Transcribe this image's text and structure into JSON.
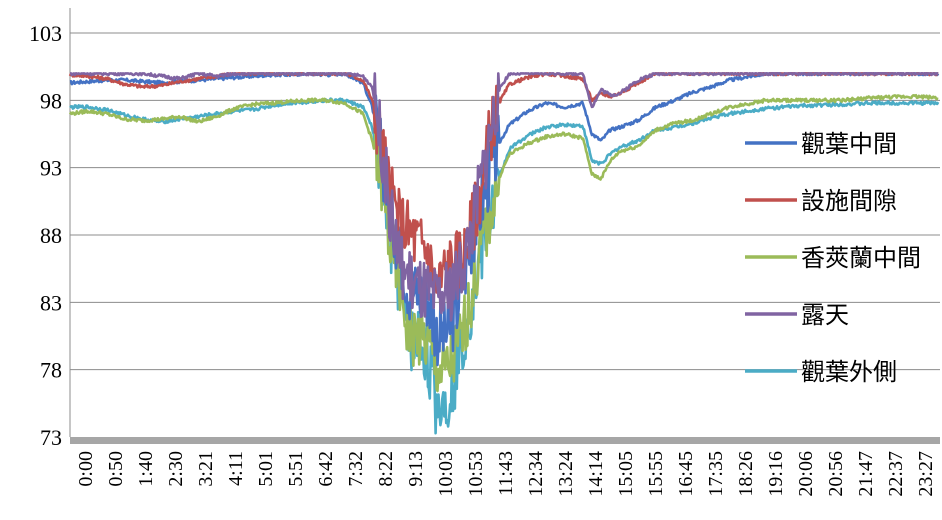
{
  "chart_data": {
    "type": "line",
    "title": "",
    "xlabel": "",
    "ylabel": "",
    "ylim": [
      73,
      103
    ],
    "yticks": [
      73,
      78,
      83,
      88,
      93,
      98,
      103
    ],
    "grid": "horizontal",
    "legend_position": "right",
    "x_tick_labels": [
      "0:00",
      "0:50",
      "1:40",
      "2:30",
      "3:21",
      "4:11",
      "5:01",
      "5:51",
      "6:42",
      "7:32",
      "8:22",
      "9:13",
      "10:03",
      "10:53",
      "11:43",
      "12:34",
      "13:24",
      "14:14",
      "15:05",
      "15:55",
      "16:45",
      "17:35",
      "18:26",
      "19:16",
      "20:06",
      "20:56",
      "21:47",
      "22:37",
      "23:27"
    ],
    "x_hours": [
      0,
      0.5,
      1,
      1.5,
      2,
      2.5,
      3,
      3.5,
      4,
      4.5,
      5,
      5.5,
      6,
      6.5,
      7,
      7.5,
      8,
      8.25,
      8.5,
      8.75,
      9,
      9.25,
      9.5,
      9.75,
      10,
      10.25,
      10.5,
      10.75,
      11,
      11.25,
      11.5,
      11.75,
      12,
      12.5,
      13,
      13.5,
      14,
      14.25,
      14.5,
      14.75,
      15,
      15.5,
      16,
      16.5,
      17,
      17.5,
      18,
      19,
      20,
      21,
      22,
      23,
      23.7
    ],
    "series": [
      {
        "name": "觀葉中間",
        "color": "#4472C4",
        "values": [
          99.3,
          99.4,
          99.5,
          99.5,
          99.4,
          99.3,
          99.4,
          99.5,
          99.6,
          99.7,
          99.8,
          99.9,
          99.9,
          100.0,
          99.9,
          100.0,
          99.3,
          97.5,
          94,
          89.5,
          87,
          84,
          83.8,
          83.5,
          80.8,
          80.5,
          82,
          85,
          88,
          90.5,
          93,
          95,
          96.2,
          97.2,
          97.8,
          97.5,
          97.8,
          95.5,
          95,
          95.8,
          96,
          96.5,
          97.5,
          98,
          98.6,
          99,
          99.5,
          100,
          100,
          100,
          100,
          100,
          100
        ]
      },
      {
        "name": "設施間隙",
        "color": "#C0504D",
        "values": [
          99.9,
          99.8,
          99.6,
          99.2,
          99.0,
          99.1,
          99.4,
          99.6,
          99.8,
          100,
          100,
          100,
          100,
          100,
          100,
          100,
          99.5,
          98,
          95,
          91,
          89,
          88.3,
          87.5,
          87,
          84,
          85.5,
          86,
          86.5,
          89,
          92,
          96,
          98,
          99.2,
          99.7,
          100,
          99.8,
          99.6,
          98,
          98.5,
          98.3,
          98.5,
          99.3,
          100,
          100,
          100,
          100,
          100,
          100,
          100,
          100,
          100,
          100,
          100
        ]
      },
      {
        "name": "香莢蘭中間",
        "color": "#9BBB59",
        "values": [
          97.0,
          97.2,
          97.0,
          96.6,
          96.5,
          96.6,
          96.8,
          96.4,
          96.8,
          97.4,
          97.7,
          97.8,
          97.9,
          98.0,
          98.0,
          97.8,
          97.0,
          95,
          92,
          87,
          84.5,
          80.5,
          80.4,
          80,
          78.2,
          77.8,
          79,
          81,
          84,
          87.5,
          90,
          92.5,
          94,
          94.8,
          95.3,
          95.5,
          95.2,
          92.5,
          92.2,
          93.5,
          94.2,
          94.6,
          95.8,
          96.3,
          96.5,
          97,
          97.5,
          98,
          98,
          98,
          98.2,
          98.3,
          98.2
        ]
      },
      {
        "name": "露天",
        "color": "#8064A2",
        "values": [
          100,
          100,
          100,
          100,
          100,
          99.8,
          99.6,
          100,
          99.8,
          100,
          100,
          100,
          100,
          100,
          100,
          100,
          99.8,
          99,
          95,
          89.5,
          86,
          84.8,
          84,
          83.5,
          83,
          83.5,
          84.5,
          86,
          89,
          92.5,
          96,
          99,
          100,
          100,
          100,
          100,
          100,
          97.5,
          98.8,
          98.4,
          98.5,
          99.5,
          100,
          100,
          100,
          100,
          100,
          100,
          100,
          100,
          100,
          100,
          100
        ]
      },
      {
        "name": "觀葉外側",
        "color": "#4BACC6",
        "values": [
          97.5,
          97.5,
          97.3,
          96.9,
          96.6,
          96.4,
          96.6,
          96.8,
          97.0,
          97.2,
          97.3,
          97.6,
          97.8,
          97.9,
          98.0,
          98.0,
          97.5,
          96,
          92.5,
          87.5,
          84,
          80,
          80.5,
          79,
          75.5,
          75.6,
          77.5,
          80.5,
          83.5,
          87,
          90,
          92.5,
          94.4,
          95.4,
          96,
          96.2,
          96.1,
          93.5,
          93.3,
          94,
          94.5,
          95,
          95.8,
          96,
          96.3,
          96.7,
          97,
          97.4,
          97.6,
          97.7,
          97.8,
          97.8,
          97.8
        ]
      }
    ]
  }
}
